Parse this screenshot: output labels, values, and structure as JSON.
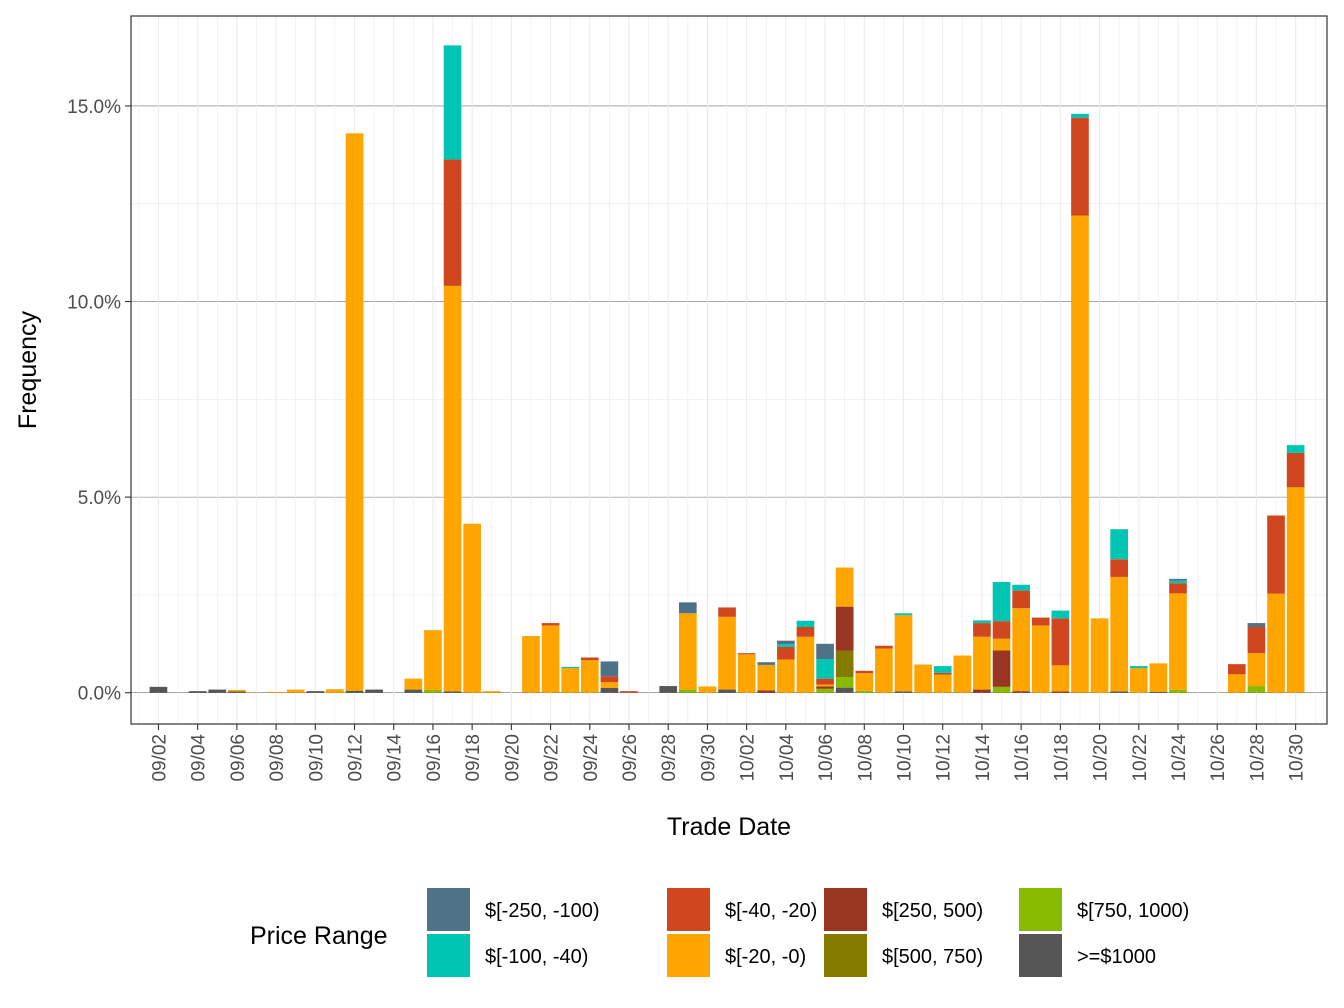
{
  "chart_data": {
    "type": "bar",
    "stacked": true,
    "xlabel": "Trade Date",
    "ylabel": "Frequency",
    "ylim": [
      -0.8,
      17.3
    ],
    "yticks": [
      0,
      5,
      10,
      15
    ],
    "ytick_labels": [
      "0.0%",
      "5.0%",
      "10.0%",
      "15.0%"
    ],
    "y_unit": "percent",
    "grid": true,
    "legend_position": "bottom",
    "legend_title": "Price Range",
    "date_range": [
      "09/01",
      "10/31"
    ],
    "xtick_labels": [
      "09/02",
      "09/04",
      "09/06",
      "09/08",
      "09/10",
      "09/12",
      "09/14",
      "09/16",
      "09/18",
      "09/20",
      "09/22",
      "09/24",
      "09/26",
      "09/28",
      "09/30",
      "10/02",
      "10/04",
      "10/06",
      "10/08",
      "10/10",
      "10/12",
      "10/14",
      "10/16",
      "10/18",
      "10/20",
      "10/22",
      "10/24",
      "10/26",
      "10/28",
      "10/30"
    ],
    "series": [
      {
        "name": "$[-250, -100)",
        "color": "#4e7388"
      },
      {
        "name": "$[-100, -40)",
        "color": "#00c5b2"
      },
      {
        "name": "$[-40, -20)",
        "color": "#d0471f"
      },
      {
        "name": "$[-20, -0)",
        "color": "#ffa500"
      },
      {
        "name": "$[250, 500)",
        "color": "#983621"
      },
      {
        "name": "$[500, 750)",
        "color": "#857a00"
      },
      {
        "name": "$[750, 1000)",
        "color": "#88bb00"
      },
      {
        "name": ">=$1000",
        "color": "#565656"
      }
    ],
    "stack_order_bottom_to_top": [
      ">=$1000",
      "$[750, 1000)",
      "$[500, 750)",
      "$[250, 500)",
      "$[-20, -0)",
      "$[-40, -20)",
      "$[-100, -40)",
      "$[-250, -100)"
    ],
    "bars": [
      {
        "date": "09/02",
        "values": {
          ">=$1000": 0.15
        }
      },
      {
        "date": "09/04",
        "values": {
          ">=$1000": 0.04
        }
      },
      {
        "date": "09/05",
        "values": {
          ">=$1000": 0.08
        }
      },
      {
        "date": "09/06",
        "values": {
          ">=$1000": 0.03,
          "$[-20, -0)": 0.04
        }
      },
      {
        "date": "09/08",
        "values": {
          "$[-20, -0)": 0.02
        }
      },
      {
        "date": "09/09",
        "values": {
          "$[-20, -0)": 0.08
        }
      },
      {
        "date": "09/10",
        "values": {
          ">=$1000": 0.04
        }
      },
      {
        "date": "09/11",
        "values": {
          "$[-20, -0)": 0.09
        }
      },
      {
        "date": "09/12",
        "values": {
          ">=$1000": 0.05,
          "$[-20, -0)": 14.25
        }
      },
      {
        "date": "09/13",
        "values": {
          ">=$1000": 0.08
        }
      },
      {
        "date": "09/15",
        "values": {
          ">=$1000": 0.08,
          "$[-20, -0)": 0.28
        }
      },
      {
        "date": "09/16",
        "values": {
          "$[750, 1000)": 0.07,
          "$[-20, -0)": 1.53
        }
      },
      {
        "date": "09/17",
        "values": {
          ">=$1000": 0.03,
          "$[-20, -0)": 10.37,
          "$[-40, -20)": 3.23,
          "$[-100, -40)": 2.92
        }
      },
      {
        "date": "09/18",
        "values": {
          "$[-20, -0)": 4.32
        }
      },
      {
        "date": "09/19",
        "values": {
          "$[-20, -0)": 0.04
        }
      },
      {
        "date": "09/21",
        "values": {
          "$[-20, -0)": 1.45
        }
      },
      {
        "date": "09/22",
        "values": {
          "$[-20, -0)": 1.72,
          "$[-40, -20)": 0.06
        }
      },
      {
        "date": "09/23",
        "values": {
          "$[-20, -0)": 0.63,
          "$[-100, -40)": 0.03
        }
      },
      {
        "date": "09/24",
        "values": {
          "$[-20, -0)": 0.83,
          "$[-40, -20)": 0.07
        }
      },
      {
        "date": "09/25",
        "values": {
          ">=$1000": 0.12,
          "$[-20, -0)": 0.15,
          "$[-40, -20)": 0.15,
          "$[-250, -100)": 0.38
        }
      },
      {
        "date": "09/26",
        "values": {
          "$[-40, -20)": 0.04
        }
      },
      {
        "date": "09/28",
        "values": {
          ">=$1000": 0.17
        }
      },
      {
        "date": "09/29",
        "values": {
          "$[750, 1000)": 0.08,
          "$[-20, -0)": 1.95,
          "$[-250, -100)": 0.28
        }
      },
      {
        "date": "09/30",
        "values": {
          "$[-20, -0)": 0.16
        }
      },
      {
        "date": "10/01",
        "values": {
          ">=$1000": 0.08,
          "$[-20, -0)": 1.86,
          "$[-40, -20)": 0.24
        }
      },
      {
        "date": "10/02",
        "values": {
          "$[-20, -0)": 0.98,
          "$[-40, -20)": 0.03
        }
      },
      {
        "date": "10/03",
        "values": {
          "$[250, 500)": 0.06,
          "$[-20, -0)": 0.65,
          "$[-250, -100)": 0.07
        }
      },
      {
        "date": "10/04",
        "values": {
          "$[-20, -0)": 0.85,
          "$[-40, -20)": 0.32,
          "$[-100, -40)": 0.07,
          "$[-250, -100)": 0.09
        }
      },
      {
        "date": "10/05",
        "values": {
          "$[-20, -0)": 1.43,
          "$[-40, -20)": 0.25,
          "$[-100, -40)": 0.16
        }
      },
      {
        "date": "10/06",
        "values": {
          "$[750, 1000)": 0.1,
          "$[250, 500)": 0.06,
          "$[-20, -0)": 0.05,
          "$[-40, -20)": 0.15,
          "$[-100, -40)": 0.5,
          "$[-250, -100)": 0.39
        }
      },
      {
        "date": "10/07",
        "values": {
          ">=$1000": 0.13,
          "$[750, 1000)": 0.27,
          "$[500, 750)": 0.67,
          "$[250, 500)": 1.13,
          "$[-20, -0)": 1.0
        }
      },
      {
        "date": "10/08",
        "values": {
          "$[750, 1000)": 0.05,
          "$[-20, -0)": 0.45,
          "$[-40, -20)": 0.06
        }
      },
      {
        "date": "10/09",
        "values": {
          "$[-20, -0)": 1.13,
          "$[-40, -20)": 0.07
        }
      },
      {
        "date": "10/10",
        "values": {
          ">=$1000": 0.03,
          "$[-20, -0)": 1.95,
          "$[-100, -40)": 0.05
        }
      },
      {
        "date": "10/11",
        "values": {
          "$[-20, -0)": 0.72
        }
      },
      {
        "date": "10/12",
        "values": {
          "$[-20, -0)": 0.46,
          "$[-40, -20)": 0.05,
          "$[-100, -40)": 0.17
        }
      },
      {
        "date": "10/13",
        "values": {
          "$[-20, -0)": 0.95
        }
      },
      {
        "date": "10/14",
        "values": {
          "$[250, 500)": 0.08,
          "$[-20, -0)": 1.35,
          "$[-40, -20)": 0.35,
          "$[-100, -40)": 0.07
        }
      },
      {
        "date": "10/15",
        "values": {
          "$[750, 1000)": 0.15,
          "$[250, 500)": 0.93,
          "$[-20, -0)": 0.3,
          "$[-40, -20)": 0.45,
          "$[-100, -40)": 1.0
        }
      },
      {
        "date": "10/16",
        "values": {
          "$[250, 500)": 0.04,
          "$[-20, -0)": 2.12,
          "$[-40, -20)": 0.45,
          "$[-100, -40)": 0.15
        }
      },
      {
        "date": "10/17",
        "values": {
          "$[-20, -0)": 1.72,
          "$[-40, -20)": 0.2
        }
      },
      {
        "date": "10/18",
        "values": {
          "$[250, 500)": 0.03,
          "$[-20, -0)": 0.67,
          "$[-40, -20)": 1.2,
          "$[-100, -40)": 0.2
        }
      },
      {
        "date": "10/19",
        "values": {
          "$[-20, -0)": 12.2,
          "$[-40, -20)": 2.5,
          "$[-100, -40)": 0.1
        }
      },
      {
        "date": "10/20",
        "values": {
          "$[-20, -0)": 1.9
        }
      },
      {
        "date": "10/21",
        "values": {
          ">=$1000": 0.03,
          "$[-20, -0)": 2.93,
          "$[-40, -20)": 0.45,
          "$[-100, -40)": 0.77
        }
      },
      {
        "date": "10/22",
        "values": {
          "$[-20, -0)": 0.63,
          "$[-100, -40)": 0.05
        }
      },
      {
        "date": "10/23",
        "values": {
          ">=$1000": 0.02,
          "$[-20, -0)": 0.73
        }
      },
      {
        "date": "10/24",
        "values": {
          "$[750, 1000)": 0.07,
          "$[-20, -0)": 2.47,
          "$[-40, -20)": 0.26,
          "$[-100, -40)": 0.06,
          "$[-250, -100)": 0.05
        }
      },
      {
        "date": "10/27",
        "values": {
          "$[-20, -0)": 0.47,
          "$[-40, -20)": 0.26
        }
      },
      {
        "date": "10/28",
        "values": {
          "$[750, 1000)": 0.17,
          "$[-20, -0)": 0.84,
          "$[-40, -20)": 0.67,
          "$[-250, -100)": 0.1
        }
      },
      {
        "date": "10/29",
        "values": {
          "$[-20, -0)": 2.53,
          "$[-40, -20)": 2.0
        }
      },
      {
        "date": "10/30",
        "values": {
          "$[-20, -0)": 5.25,
          "$[-40, -20)": 0.88,
          "$[-100, -40)": 0.2
        }
      }
    ]
  }
}
